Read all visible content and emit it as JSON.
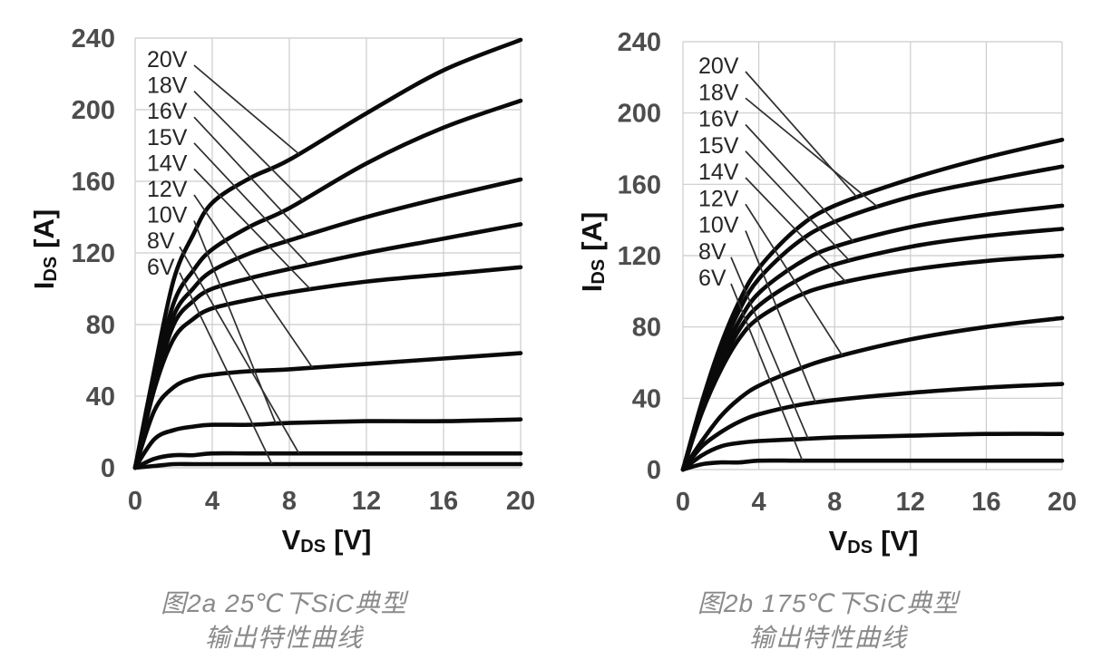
{
  "styles": {
    "background": "#ffffff",
    "grid_color": "#cccccc",
    "curve_color": "#0a0a0a",
    "leader_color": "#2e2e2e",
    "tick_color": "#4d4d4d",
    "gate_label_color": "#262626",
    "axis_title_color": "#111111",
    "caption_color": "#8a8a8a"
  },
  "chart_data": [
    {
      "type": "line",
      "id": "fig2a",
      "title": "图2a 25℃下SiC典型输出特性曲线",
      "caption": {
        "line1": "图2a 25℃下SiC典型",
        "line2": "输出特性曲线"
      },
      "xlabel": {
        "main": "V",
        "sub": "DS",
        "unit": "[V]"
      },
      "ylabel": {
        "main": "I",
        "sub": "DS",
        "unit": "[A]"
      },
      "xlim": [
        0,
        20
      ],
      "ylim": [
        0,
        240
      ],
      "x_ticks": [
        0,
        4,
        8,
        12,
        16,
        20
      ],
      "y_ticks": [
        0,
        40,
        80,
        120,
        160,
        200,
        240
      ],
      "grid": true,
      "x_values": [
        0,
        1,
        2,
        3,
        4,
        6,
        8,
        12,
        16,
        20
      ],
      "series": [
        {
          "name": "20V",
          "values": [
            0,
            55,
            105,
            130,
            148,
            162,
            172,
            198,
            222,
            239
          ],
          "leader_v": 8.5
        },
        {
          "name": "18V",
          "values": [
            0,
            50,
            92,
            110,
            122,
            135,
            145,
            170,
            190,
            205
          ],
          "leader_v": 8.7
        },
        {
          "name": "16V",
          "values": [
            0,
            48,
            85,
            100,
            110,
            120,
            127,
            140,
            151,
            161
          ],
          "leader_v": 8.8
        },
        {
          "name": "15V",
          "values": [
            0,
            46,
            80,
            93,
            100,
            106,
            111,
            120,
            128,
            136
          ],
          "leader_v": 9.0
        },
        {
          "name": "14V",
          "values": [
            0,
            44,
            72,
            83,
            89,
            94,
            98,
            104,
            108,
            112
          ],
          "leader_v": 9.1
        },
        {
          "name": "12V",
          "values": [
            0,
            32,
            45,
            50,
            52,
            54,
            55,
            58,
            61,
            64
          ],
          "leader_v": 9.2
        },
        {
          "name": "10V",
          "values": [
            0,
            16,
            21,
            23,
            24,
            24,
            25,
            26,
            26,
            27
          ],
          "leader_v": 7.3
        },
        {
          "name": "8V",
          "values": [
            0,
            5,
            7,
            7,
            8,
            8,
            8,
            8,
            8,
            8
          ],
          "leader_v": 8.5
        },
        {
          "name": "6V",
          "values": [
            0,
            1,
            2,
            2,
            2,
            2,
            2,
            2,
            2,
            2
          ],
          "leader_v": 7.1
        }
      ]
    },
    {
      "type": "line",
      "id": "fig2b",
      "title": "图2b 175℃下SiC典型输出特性曲线",
      "caption": {
        "line1": "图2b 175℃下SiC典型",
        "line2": "输出特性曲线"
      },
      "xlabel": {
        "main": "V",
        "sub": "DS",
        "unit": "[V]"
      },
      "ylabel": {
        "main": "I",
        "sub": "DS",
        "unit": "[A]"
      },
      "xlim": [
        0,
        20
      ],
      "ylim": [
        0,
        240
      ],
      "x_ticks": [
        0,
        4,
        8,
        12,
        16,
        20
      ],
      "y_ticks": [
        0,
        40,
        80,
        120,
        160,
        200,
        240
      ],
      "grid": true,
      "x_values": [
        0,
        1,
        2,
        3,
        4,
        6,
        8,
        12,
        16,
        20
      ],
      "series": [
        {
          "name": "20V",
          "values": [
            0,
            38,
            70,
            95,
            113,
            135,
            148,
            163,
            175,
            185
          ],
          "leader_v": 9.2
        },
        {
          "name": "18V",
          "values": [
            0,
            36,
            66,
            90,
            107,
            127,
            139,
            153,
            162,
            170
          ],
          "leader_v": 10.3
        },
        {
          "name": "16V",
          "values": [
            0,
            34,
            62,
            84,
            99,
            115,
            125,
            136,
            143,
            148
          ],
          "leader_v": 9.0
        },
        {
          "name": "15V",
          "values": [
            0,
            33,
            59,
            79,
            92,
            106,
            115,
            125,
            131,
            135
          ],
          "leader_v": 8.8
        },
        {
          "name": "14V",
          "values": [
            0,
            32,
            56,
            74,
            85,
            97,
            104,
            112,
            117,
            120
          ],
          "leader_v": 8.6
        },
        {
          "name": "12V",
          "values": [
            0,
            16,
            30,
            40,
            47,
            56,
            63,
            73,
            80,
            85
          ],
          "leader_v": 8.4
        },
        {
          "name": "10V",
          "values": [
            0,
            13,
            21,
            27,
            31,
            36,
            39,
            43,
            46,
            48
          ],
          "leader_v": 7.0
        },
        {
          "name": "8V",
          "values": [
            0,
            8,
            13,
            15,
            16,
            17,
            18,
            19,
            20,
            20
          ],
          "leader_v": 6.6
        },
        {
          "name": "6V",
          "values": [
            0,
            3,
            4,
            4,
            5,
            5,
            5,
            5,
            5,
            5
          ],
          "leader_v": 6.3
        }
      ]
    }
  ]
}
